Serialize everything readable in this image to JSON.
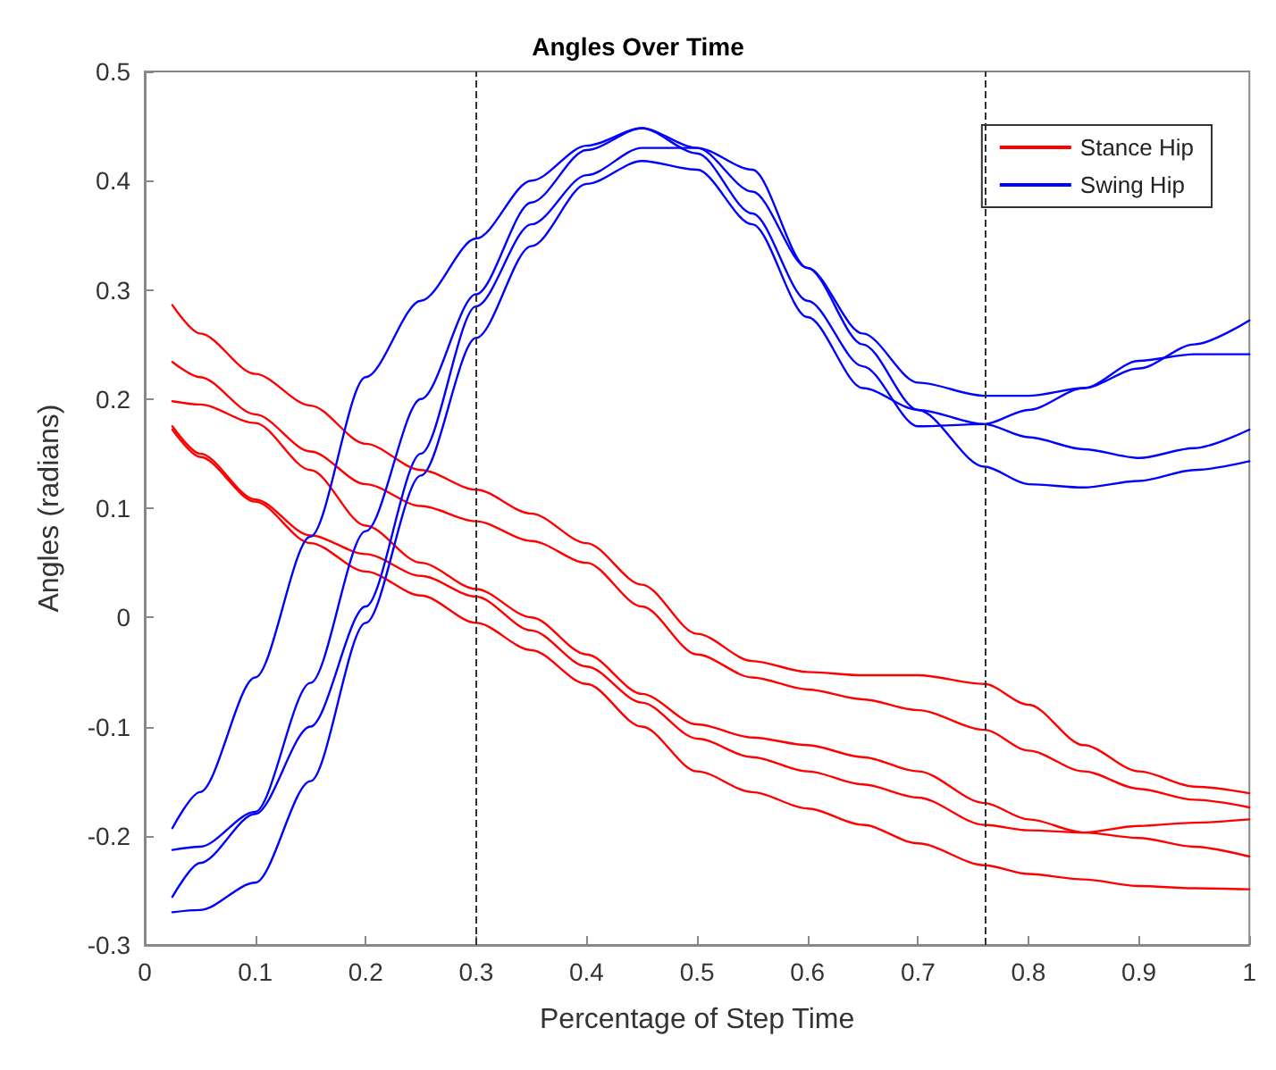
{
  "chart_data": {
    "type": "line",
    "title": "Angles Over Time",
    "xlabel": "Percentage of Step Time",
    "ylabel": "Angles (radians)",
    "x": [
      0.025,
      0.05,
      0.1,
      0.15,
      0.2,
      0.25,
      0.3,
      0.35,
      0.4,
      0.45,
      0.5,
      0.55,
      0.6,
      0.65,
      0.7,
      0.76,
      0.8,
      0.85,
      0.9,
      0.95,
      1
    ],
    "series": [
      {
        "name": "Stance Hip",
        "color": "#ff0000",
        "values": [
          0.286,
          0.26,
          0.223,
          0.194,
          0.159,
          0.135,
          0.117,
          0.095,
          0.068,
          0.03,
          -0.015,
          -0.04,
          -0.05,
          -0.053,
          -0.053,
          -0.061,
          -0.08,
          -0.117,
          -0.141,
          -0.155,
          -0.161
        ]
      },
      {
        "color": "#ff0000",
        "values": [
          0.234,
          0.22,
          0.186,
          0.152,
          0.122,
          0.102,
          0.088,
          0.07,
          0.05,
          0.01,
          -0.034,
          -0.055,
          -0.066,
          -0.075,
          -0.085,
          -0.103,
          -0.122,
          -0.141,
          -0.157,
          -0.167,
          -0.174
        ]
      },
      {
        "color": "#ff0000",
        "values": [
          0.198,
          0.195,
          0.178,
          0.135,
          0.084,
          0.05,
          0.026,
          0.0,
          -0.034,
          -0.07,
          -0.098,
          -0.11,
          -0.117,
          -0.128,
          -0.141,
          -0.17,
          -0.185,
          -0.197,
          -0.191,
          -0.188,
          -0.185
        ]
      },
      {
        "color": "#ff0000",
        "values": [
          0.175,
          0.15,
          0.108,
          0.075,
          0.058,
          0.038,
          0.019,
          -0.012,
          -0.045,
          -0.078,
          -0.111,
          -0.128,
          -0.141,
          -0.153,
          -0.165,
          -0.19,
          -0.195,
          -0.197,
          -0.202,
          -0.21,
          -0.219
        ]
      },
      {
        "color": "#ff0000",
        "values": [
          0.172,
          0.147,
          0.106,
          0.068,
          0.042,
          0.02,
          -0.005,
          -0.03,
          -0.061,
          -0.1,
          -0.141,
          -0.16,
          -0.175,
          -0.19,
          -0.207,
          -0.227,
          -0.235,
          -0.24,
          -0.246,
          -0.248,
          -0.249
        ]
      },
      {
        "name": "Swing Hip",
        "color": "#0000ff",
        "values": [
          -0.193,
          -0.16,
          -0.055,
          0.074,
          0.22,
          0.29,
          0.347,
          0.4,
          0.432,
          0.448,
          0.43,
          0.39,
          0.32,
          0.25,
          0.19,
          0.138,
          0.122,
          0.119,
          0.125,
          0.135,
          0.143
        ]
      },
      {
        "color": "#0000ff",
        "values": [
          -0.213,
          -0.21,
          -0.178,
          -0.06,
          0.079,
          0.2,
          0.296,
          0.38,
          0.428,
          0.448,
          0.425,
          0.37,
          0.29,
          0.23,
          0.175,
          0.177,
          0.19,
          0.21,
          0.228,
          0.25,
          0.272
        ]
      },
      {
        "color": "#0000ff",
        "values": [
          -0.256,
          -0.225,
          -0.18,
          -0.1,
          0.01,
          0.15,
          0.285,
          0.36,
          0.405,
          0.43,
          0.43,
          0.41,
          0.32,
          0.26,
          0.215,
          0.203,
          0.203,
          0.21,
          0.235,
          0.241,
          0.241
        ]
      },
      {
        "color": "#0000ff",
        "values": [
          -0.27,
          -0.268,
          -0.243,
          -0.15,
          -0.005,
          0.13,
          0.256,
          0.34,
          0.397,
          0.418,
          0.41,
          0.36,
          0.275,
          0.21,
          0.19,
          0.177,
          0.165,
          0.154,
          0.146,
          0.155,
          0.172
        ]
      }
    ],
    "xlim": [
      0,
      1
    ],
    "xticks": [
      0,
      0.1,
      0.2,
      0.3,
      0.4,
      0.5,
      0.6,
      0.7,
      0.8,
      0.9,
      1
    ],
    "ylim": [
      -0.3,
      0.5
    ],
    "yticks": [
      -0.3,
      -0.2,
      -0.1,
      0,
      0.1,
      0.2,
      0.3,
      0.4,
      0.5
    ],
    "ref_lines": [
      {
        "axis": "x",
        "value": 0.3,
        "color": "#333333",
        "line_style": "dashed"
      },
      {
        "axis": "x",
        "value": 0.76,
        "color": "#333333",
        "line_style": "dashed"
      }
    ],
    "grid": false,
    "legend": "top right",
    "marker": "none",
    "line_style": "solid"
  }
}
